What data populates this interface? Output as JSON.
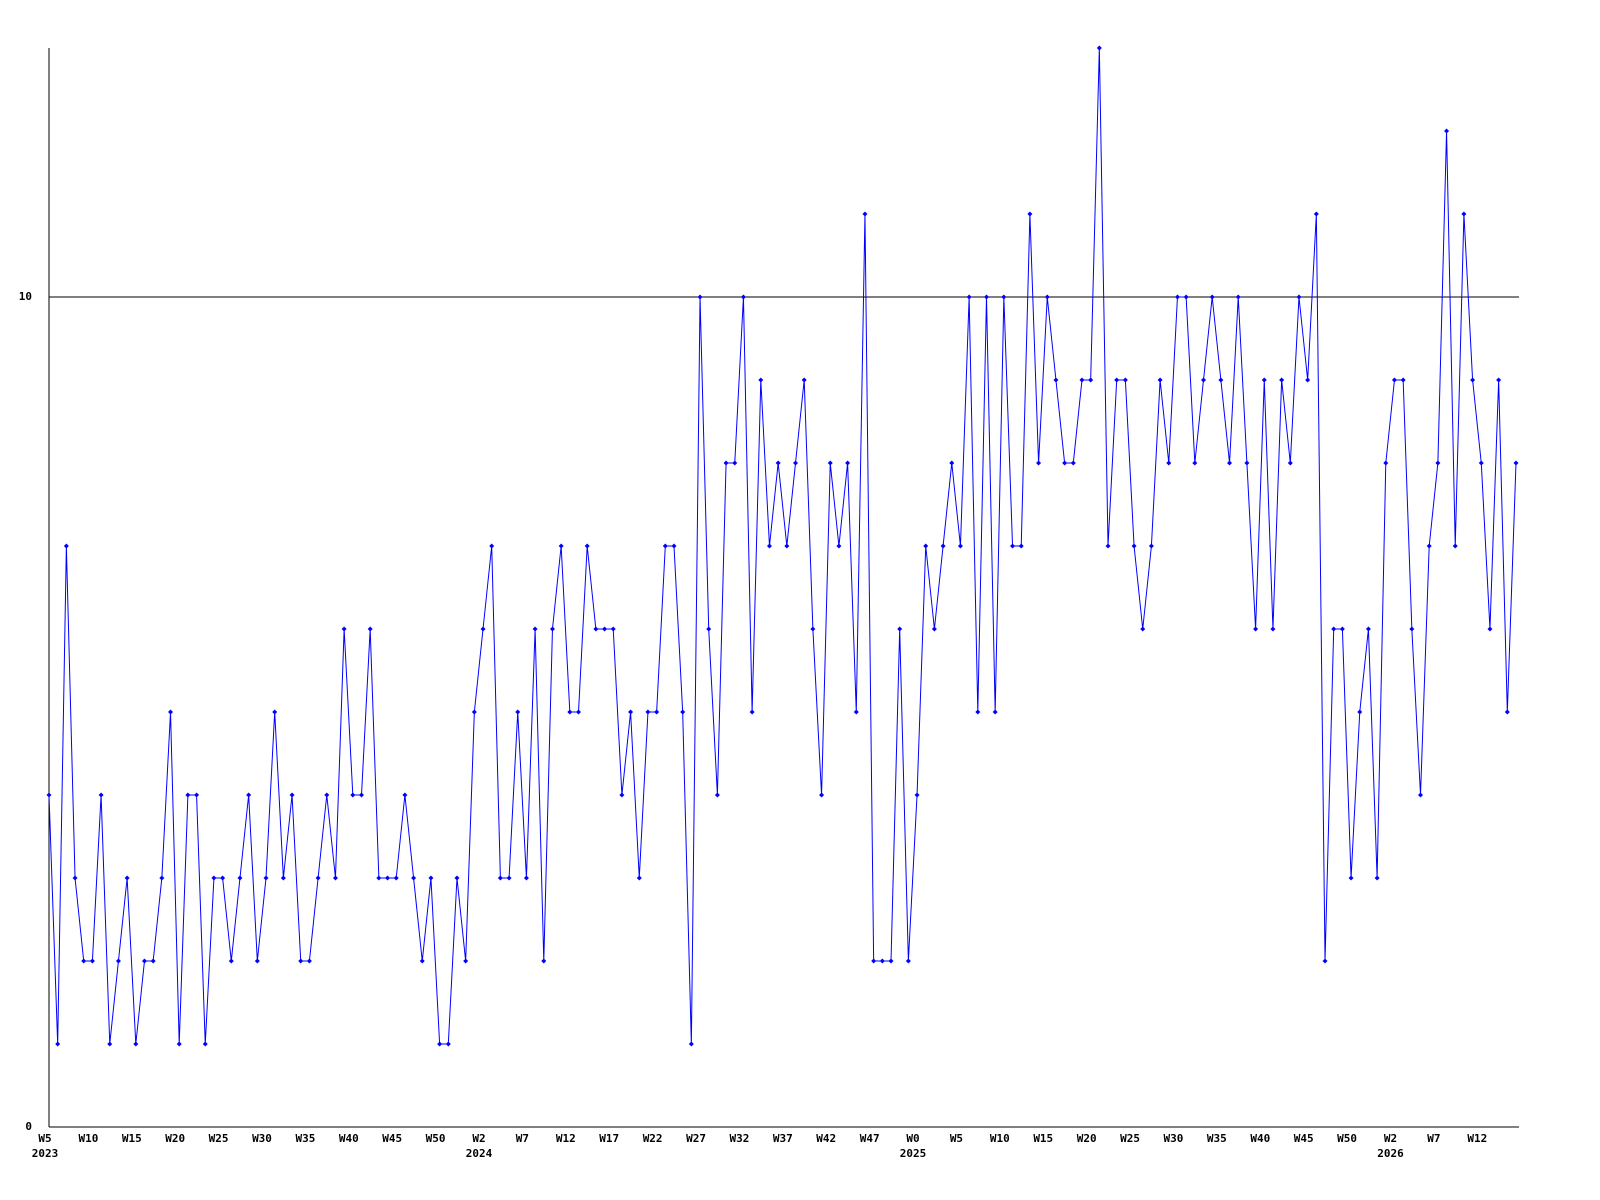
{
  "chart_data": {
    "type": "line",
    "categories": [
      "W5",
      null,
      null,
      null,
      null,
      "W10",
      null,
      null,
      null,
      null,
      "W15",
      null,
      null,
      null,
      null,
      "W20",
      null,
      null,
      null,
      null,
      "W25",
      null,
      null,
      null,
      null,
      "W30",
      null,
      null,
      null,
      null,
      "W35",
      null,
      null,
      null,
      null,
      "W40",
      null,
      null,
      null,
      null,
      "W45",
      null,
      null,
      null,
      null,
      "W50",
      null,
      null,
      null,
      null,
      "W2",
      null,
      null,
      null,
      null,
      "W7",
      null,
      null,
      null,
      null,
      "W12",
      null,
      null,
      null,
      null,
      "W17",
      null,
      null,
      null,
      null,
      "W22",
      null,
      null,
      null,
      null,
      "W27",
      null,
      null,
      null,
      null,
      "W32",
      null,
      null,
      null,
      null,
      "W37",
      null,
      null,
      null,
      null,
      "W42",
      null,
      null,
      null,
      null,
      "W47",
      null,
      null,
      null,
      null,
      "W0",
      null,
      null,
      null,
      null,
      "W5",
      null,
      null,
      null,
      null,
      "W10",
      null,
      null,
      null,
      null,
      "W15",
      null,
      null,
      null,
      null,
      "W20",
      null,
      null,
      null,
      null,
      "W25",
      null,
      null,
      null,
      null,
      "W30",
      null,
      null,
      null,
      null,
      "W35",
      null,
      null,
      null,
      null,
      "W40",
      null,
      null,
      null,
      null,
      "W45",
      null,
      null,
      null,
      null,
      "W50",
      null,
      null,
      null,
      null,
      "W2",
      null,
      null,
      null,
      null,
      "W7",
      null,
      null,
      null,
      null,
      "W12",
      null,
      null,
      null,
      null
    ],
    "years": [
      "2023",
      null,
      null,
      null,
      null,
      null,
      null,
      null,
      null,
      null,
      null,
      null,
      null,
      null,
      null,
      null,
      null,
      null,
      null,
      null,
      null,
      null,
      null,
      null,
      null,
      null,
      null,
      null,
      null,
      null,
      null,
      null,
      null,
      null,
      null,
      null,
      null,
      null,
      null,
      null,
      null,
      null,
      null,
      null,
      null,
      null,
      null,
      null,
      null,
      null,
      "2024",
      null,
      null,
      null,
      null,
      null,
      null,
      null,
      null,
      null,
      null,
      null,
      null,
      null,
      null,
      null,
      null,
      null,
      null,
      null,
      null,
      null,
      null,
      null,
      null,
      null,
      null,
      null,
      null,
      null,
      null,
      null,
      null,
      null,
      null,
      null,
      null,
      null,
      null,
      null,
      null,
      null,
      null,
      null,
      null,
      null,
      null,
      null,
      null,
      null,
      "2025",
      null,
      null,
      null,
      null,
      null,
      null,
      null,
      null,
      null,
      null,
      null,
      null,
      null,
      null,
      null,
      null,
      null,
      null,
      null,
      null,
      null,
      null,
      null,
      null,
      null,
      null,
      null,
      null,
      null,
      null,
      null,
      null,
      null,
      null,
      null,
      null,
      null,
      null,
      null,
      null,
      null,
      null,
      null,
      null,
      null,
      null,
      null,
      null,
      null,
      null,
      null,
      null,
      null,
      null,
      "2026",
      null,
      null,
      null,
      null,
      null,
      null,
      null,
      null,
      null,
      null,
      null,
      null,
      null,
      null
    ],
    "values": [
      4,
      1,
      7,
      3,
      2,
      2,
      4,
      1,
      2,
      3,
      1,
      2,
      2,
      3,
      5,
      1,
      4,
      4,
      1,
      3,
      3,
      2,
      3,
      4,
      2,
      3,
      5,
      3,
      4,
      2,
      2,
      3,
      4,
      3,
      6,
      4,
      4,
      6,
      3,
      3,
      3,
      4,
      3,
      2,
      3,
      1,
      1,
      3,
      2,
      5,
      6,
      7,
      3,
      3,
      5,
      3,
      6,
      2,
      6,
      7,
      5,
      5,
      7,
      6,
      6,
      6,
      4,
      5,
      3,
      5,
      5,
      7,
      7,
      5,
      1,
      10,
      6,
      4,
      8,
      8,
      10,
      5,
      9,
      7,
      8,
      7,
      8,
      9,
      6,
      4,
      8,
      7,
      8,
      5,
      11,
      2,
      2,
      2,
      6,
      2,
      4,
      7,
      6,
      7,
      8,
      7,
      10,
      5,
      10,
      5,
      10,
      7,
      7,
      11,
      8,
      10,
      9,
      8,
      8,
      9,
      9,
      13,
      7,
      9,
      9,
      7,
      6,
      7,
      9,
      8,
      10,
      10,
      8,
      9,
      10,
      9,
      8,
      10,
      8,
      6,
      9,
      6,
      9,
      8,
      10,
      9,
      11,
      2,
      6,
      6,
      3,
      5,
      6,
      3,
      8,
      9,
      9,
      6,
      4,
      7,
      8,
      12,
      7,
      11,
      9,
      8,
      6,
      9,
      5,
      8
    ],
    "color": "#0000ff",
    "ylim": [
      0,
      13
    ],
    "yticks": [
      0,
      10
    ],
    "grid": true
  }
}
